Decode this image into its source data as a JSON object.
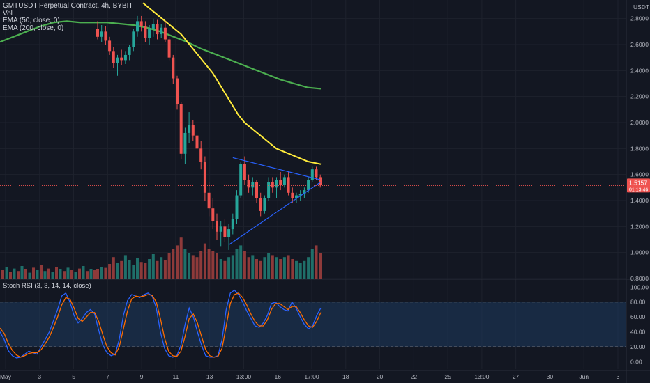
{
  "header": {
    "symbol_line": "GMTUSDT Perpetual Contract, 4h, BYBIT",
    "vol_label": "Vol",
    "ema50_label": "EMA (50, close, 0)",
    "ema200_label": "EMA (200, close, 0)"
  },
  "price_axis": {
    "currency": "USDT",
    "current_price": "1.5157",
    "countdown": "01:13:46"
  },
  "stoch": {
    "label": "Stoch RSI (3, 3, 14, 14, close)"
  },
  "colors": {
    "background": "#131722",
    "up": "#26a69a",
    "down": "#ef5350",
    "vol_up": "#1f6f69",
    "vol_down": "#8e3a3a",
    "ema50": "#ffeb3b",
    "ema200": "#4caf50",
    "trendline": "#2962ff",
    "k_line": "#2962ff",
    "d_line": "#ff6d00",
    "stoch_band": "#1e3a5f"
  },
  "chart_data": [
    {
      "type": "candlestick",
      "title": "GMTUSDT Perpetual Contract, 4h, BYBIT",
      "ylim": [
        0.8,
        2.9
      ],
      "y_ticks": [
        "2.8000",
        "2.6000",
        "2.4000",
        "2.2000",
        "2.0000",
        "1.8000",
        "1.6000",
        "1.4000",
        "1.2000",
        "1.0000",
        "0.8000"
      ],
      "x_ticks": [
        "May",
        "3",
        "5",
        "7",
        "9",
        "11",
        "13",
        "13:00",
        "16",
        "17:00",
        "18",
        "20",
        "22",
        "25",
        "13:00",
        "27",
        "30",
        "Jun",
        "3"
      ],
      "current_price": 1.5157,
      "candles": [
        {
          "o": 2.72,
          "h": 2.78,
          "l": 2.64,
          "c": 2.66
        },
        {
          "o": 2.66,
          "h": 2.75,
          "l": 2.62,
          "c": 2.7
        },
        {
          "o": 2.7,
          "h": 2.74,
          "l": 2.6,
          "c": 2.63
        },
        {
          "o": 2.63,
          "h": 2.66,
          "l": 2.52,
          "c": 2.55
        },
        {
          "o": 2.55,
          "h": 2.58,
          "l": 2.42,
          "c": 2.46
        },
        {
          "o": 2.46,
          "h": 2.52,
          "l": 2.36,
          "c": 2.5
        },
        {
          "o": 2.5,
          "h": 2.56,
          "l": 2.44,
          "c": 2.48
        },
        {
          "o": 2.48,
          "h": 2.55,
          "l": 2.45,
          "c": 2.52
        },
        {
          "o": 2.52,
          "h": 2.6,
          "l": 2.48,
          "c": 2.58
        },
        {
          "o": 2.58,
          "h": 2.72,
          "l": 2.55,
          "c": 2.7
        },
        {
          "o": 2.7,
          "h": 2.82,
          "l": 2.66,
          "c": 2.78
        },
        {
          "o": 2.78,
          "h": 2.82,
          "l": 2.7,
          "c": 2.74
        },
        {
          "o": 2.74,
          "h": 2.78,
          "l": 2.62,
          "c": 2.65
        },
        {
          "o": 2.65,
          "h": 2.75,
          "l": 2.6,
          "c": 2.72
        },
        {
          "o": 2.72,
          "h": 2.8,
          "l": 2.66,
          "c": 2.76
        },
        {
          "o": 2.76,
          "h": 2.79,
          "l": 2.64,
          "c": 2.68
        },
        {
          "o": 2.68,
          "h": 2.76,
          "l": 2.65,
          "c": 2.73
        },
        {
          "o": 2.73,
          "h": 2.78,
          "l": 2.62,
          "c": 2.64
        },
        {
          "o": 2.64,
          "h": 2.66,
          "l": 2.48,
          "c": 2.5
        },
        {
          "o": 2.5,
          "h": 2.52,
          "l": 2.3,
          "c": 2.34
        },
        {
          "o": 2.34,
          "h": 2.36,
          "l": 2.1,
          "c": 2.14
        },
        {
          "o": 2.14,
          "h": 2.16,
          "l": 1.72,
          "c": 1.76
        },
        {
          "o": 1.76,
          "h": 1.96,
          "l": 1.68,
          "c": 1.92
        },
        {
          "o": 1.92,
          "h": 2.08,
          "l": 1.84,
          "c": 1.98
        },
        {
          "o": 1.98,
          "h": 2.02,
          "l": 1.86,
          "c": 1.9
        },
        {
          "o": 1.9,
          "h": 1.96,
          "l": 1.76,
          "c": 1.8
        },
        {
          "o": 1.8,
          "h": 1.86,
          "l": 1.64,
          "c": 1.7
        },
        {
          "o": 1.7,
          "h": 1.74,
          "l": 1.4,
          "c": 1.46
        },
        {
          "o": 1.46,
          "h": 1.54,
          "l": 1.28,
          "c": 1.34
        },
        {
          "o": 1.34,
          "h": 1.42,
          "l": 1.18,
          "c": 1.24
        },
        {
          "o": 1.24,
          "h": 1.3,
          "l": 1.1,
          "c": 1.16
        },
        {
          "o": 1.16,
          "h": 1.24,
          "l": 1.05,
          "c": 1.2
        },
        {
          "o": 1.2,
          "h": 1.26,
          "l": 1.08,
          "c": 1.12
        },
        {
          "o": 1.12,
          "h": 1.22,
          "l": 1.02,
          "c": 1.18
        },
        {
          "o": 1.18,
          "h": 1.3,
          "l": 1.14,
          "c": 1.26
        },
        {
          "o": 1.26,
          "h": 1.48,
          "l": 1.22,
          "c": 1.44
        },
        {
          "o": 1.44,
          "h": 1.7,
          "l": 1.42,
          "c": 1.68
        },
        {
          "o": 1.68,
          "h": 1.74,
          "l": 1.52,
          "c": 1.56
        },
        {
          "o": 1.56,
          "h": 1.6,
          "l": 1.46,
          "c": 1.5
        },
        {
          "o": 1.5,
          "h": 1.58,
          "l": 1.44,
          "c": 1.54
        },
        {
          "o": 1.54,
          "h": 1.56,
          "l": 1.38,
          "c": 1.42
        },
        {
          "o": 1.42,
          "h": 1.46,
          "l": 1.28,
          "c": 1.32
        },
        {
          "o": 1.32,
          "h": 1.44,
          "l": 1.3,
          "c": 1.42
        },
        {
          "o": 1.42,
          "h": 1.58,
          "l": 1.4,
          "c": 1.54
        },
        {
          "o": 1.54,
          "h": 1.58,
          "l": 1.46,
          "c": 1.5
        },
        {
          "o": 1.5,
          "h": 1.58,
          "l": 1.42,
          "c": 1.56
        },
        {
          "o": 1.56,
          "h": 1.62,
          "l": 1.48,
          "c": 1.52
        },
        {
          "o": 1.52,
          "h": 1.6,
          "l": 1.5,
          "c": 1.58
        },
        {
          "o": 1.58,
          "h": 1.62,
          "l": 1.44,
          "c": 1.46
        },
        {
          "o": 1.46,
          "h": 1.5,
          "l": 1.38,
          "c": 1.42
        },
        {
          "o": 1.42,
          "h": 1.46,
          "l": 1.38,
          "c": 1.44
        },
        {
          "o": 1.44,
          "h": 1.48,
          "l": 1.4,
          "c": 1.45
        },
        {
          "o": 1.45,
          "h": 1.5,
          "l": 1.42,
          "c": 1.48
        },
        {
          "o": 1.48,
          "h": 1.58,
          "l": 1.46,
          "c": 1.56
        },
        {
          "o": 1.56,
          "h": 1.66,
          "l": 1.54,
          "c": 1.64
        },
        {
          "o": 1.64,
          "h": 1.66,
          "l": 1.56,
          "c": 1.58
        },
        {
          "o": 1.58,
          "h": 1.6,
          "l": 1.5,
          "c": 1.52
        }
      ],
      "volume": [
        1,
        1.2,
        1.1,
        1.5,
        2.2,
        1.6,
        1.8,
        2.4,
        1.9,
        1.4,
        2.1,
        1.7,
        1.6,
        2.0,
        2.5,
        1.8,
        2.2,
        1.9,
        2.6,
        3.0,
        3.4,
        4.2,
        3.0,
        2.6,
        2.4,
        2.2,
        2.8,
        3.6,
        3.0,
        2.8,
        2.6,
        2.0,
        1.8,
        2.2,
        2.4,
        3.0,
        3.4,
        2.8,
        2.2,
        2.4,
        2.0,
        1.8,
        2.2,
        2.6,
        2.4,
        2.2,
        2.0,
        2.2,
        2.4,
        2.0,
        1.8,
        1.6,
        1.8,
        2.2,
        3.0,
        3.4,
        2.6
      ],
      "ema50": [
        2.92,
        2.88,
        2.84,
        2.8,
        2.76,
        2.72,
        2.68,
        2.62,
        2.56,
        2.5,
        2.44,
        2.38,
        2.3,
        2.22,
        2.14,
        2.06,
        2.0,
        1.96,
        1.92,
        1.88,
        1.84,
        1.8,
        1.78,
        1.76,
        1.74,
        1.72,
        1.7,
        1.69,
        1.68
      ],
      "ema200": [
        2.62,
        2.66,
        2.7,
        2.74,
        2.77,
        2.78,
        2.77,
        2.77,
        2.77,
        2.76,
        2.75,
        2.73,
        2.7,
        2.66,
        2.62,
        2.57,
        2.53,
        2.49,
        2.45,
        2.41,
        2.37,
        2.33,
        2.3,
        2.27,
        2.26
      ],
      "trendlines": [
        {
          "name": "upper",
          "from": {
            "candle": 34,
            "price": 1.73
          },
          "to": {
            "candle": 56,
            "price": 1.56
          }
        },
        {
          "name": "lower",
          "from": {
            "candle": 33,
            "price": 1.06
          },
          "to": {
            "candle": 56,
            "price": 1.54
          }
        }
      ]
    },
    {
      "type": "line",
      "title": "Stoch RSI (3, 3, 14, 14, close)",
      "ylim": [
        -10,
        105
      ],
      "y_ticks": [
        "100.00",
        "80.00",
        "60.00",
        "40.00",
        "20.00",
        "0.00"
      ],
      "bands": [
        20,
        80
      ],
      "series": [
        {
          "name": "K",
          "values": [
            40,
            30,
            15,
            8,
            5,
            6,
            10,
            14,
            12,
            10,
            20,
            30,
            40,
            55,
            70,
            88,
            92,
            80,
            62,
            52,
            58,
            66,
            70,
            64,
            42,
            22,
            12,
            8,
            10,
            30,
            62,
            82,
            90,
            88,
            86,
            90,
            92,
            88,
            72,
            40,
            18,
            8,
            6,
            8,
            22,
            50,
            72,
            60,
            40,
            22,
            8,
            6,
            6,
            8,
            30,
            70,
            92,
            96,
            90,
            80,
            68,
            58,
            48,
            46,
            52,
            62,
            78,
            80,
            74,
            70,
            68,
            80,
            72,
            60,
            50,
            44,
            48,
            62,
            72
          ]
        },
        {
          "name": "D",
          "values": [
            45,
            38,
            25,
            15,
            9,
            6,
            8,
            11,
            12,
            12,
            16,
            24,
            33,
            46,
            60,
            76,
            86,
            84,
            72,
            58,
            54,
            60,
            66,
            66,
            54,
            36,
            20,
            12,
            9,
            20,
            44,
            68,
            84,
            88,
            87,
            88,
            90,
            89,
            80,
            58,
            32,
            14,
            8,
            7,
            14,
            34,
            58,
            64,
            52,
            34,
            16,
            8,
            6,
            7,
            18,
            48,
            78,
            90,
            92,
            86,
            76,
            64,
            54,
            48,
            48,
            56,
            70,
            78,
            78,
            74,
            70,
            74,
            74,
            66,
            56,
            48,
            46,
            54,
            66
          ]
        }
      ]
    }
  ]
}
